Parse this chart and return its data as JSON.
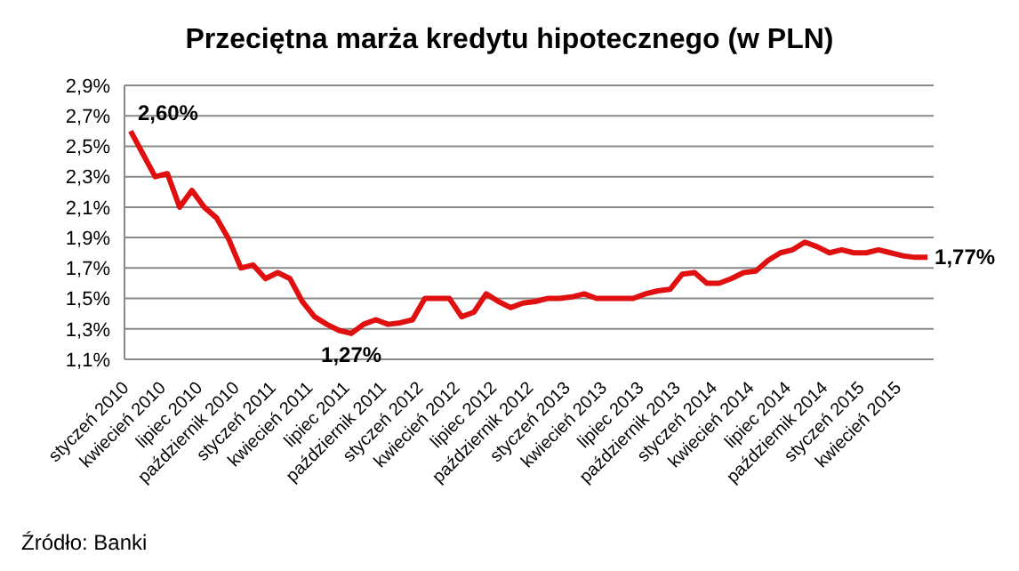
{
  "chart_data": {
    "type": "line",
    "title": "Przeciętna marża kredytu hipotecznego (w PLN)",
    "categories": [
      "styczeń 2010",
      null,
      null,
      "kwiecień 2010",
      null,
      null,
      "lipiec 2010",
      null,
      null,
      "październik 2010",
      null,
      null,
      "styczeń 2011",
      null,
      null,
      "kwiecień 2011",
      null,
      null,
      "lipiec 2011",
      null,
      null,
      "październik 2011",
      null,
      null,
      "styczeń 2012",
      null,
      null,
      "kwiecień 2012",
      null,
      null,
      "lipiec 2012",
      null,
      null,
      "październik 2012",
      null,
      null,
      "styczeń 2013",
      null,
      null,
      "kwiecień 2013",
      null,
      null,
      "lipiec 2013",
      null,
      null,
      "październik 2013",
      null,
      null,
      "styczeń 2014",
      null,
      null,
      "kwiecień 2014",
      null,
      null,
      "lipiec 2014",
      null,
      null,
      "październik 2014",
      null,
      null,
      "styczeń 2015",
      null,
      null,
      "kwiecień 2015",
      null,
      null
    ],
    "series": [
      {
        "color": "#e01010",
        "values": [
          2.6,
          2.45,
          2.3,
          2.32,
          2.1,
          2.21,
          2.1,
          2.03,
          1.89,
          1.7,
          1.72,
          1.63,
          1.67,
          1.63,
          1.48,
          1.38,
          1.33,
          1.29,
          1.27,
          1.33,
          1.36,
          1.33,
          1.34,
          1.36,
          1.5,
          1.5,
          1.5,
          1.38,
          1.41,
          1.53,
          1.48,
          1.44,
          1.47,
          1.48,
          1.5,
          1.5,
          1.51,
          1.53,
          1.5,
          1.5,
          1.5,
          1.5,
          1.53,
          1.55,
          1.56,
          1.66,
          1.67,
          1.6,
          1.6,
          1.63,
          1.67,
          1.68,
          1.75,
          1.8,
          1.82,
          1.87,
          1.84,
          1.8,
          1.82,
          1.8,
          1.8,
          1.82,
          1.8,
          1.78,
          1.77,
          1.77
        ],
        "value_labels": [
          "2,60%",
          null,
          null,
          null,
          null,
          null,
          null,
          null,
          null,
          null,
          null,
          null,
          null,
          null,
          null,
          null,
          null,
          null,
          "1,27%",
          null,
          null,
          null,
          null,
          null,
          null,
          null,
          null,
          null,
          null,
          null,
          null,
          null,
          null,
          null,
          null,
          null,
          null,
          null,
          null,
          null,
          null,
          null,
          null,
          null,
          null,
          null,
          null,
          null,
          null,
          null,
          null,
          null,
          null,
          null,
          null,
          null,
          null,
          null,
          null,
          null,
          null,
          null,
          null,
          null,
          null,
          "1,77%"
        ]
      }
    ],
    "ylim": [
      1.1,
      2.9
    ],
    "yticks": [
      {
        "value": 1.1,
        "label": "1,1%"
      },
      {
        "value": 1.3,
        "label": "1,3%"
      },
      {
        "value": 1.5,
        "label": "1,5%"
      },
      {
        "value": 1.7,
        "label": "1,7%"
      },
      {
        "value": 1.9,
        "label": "1,9%"
      },
      {
        "value": 2.1,
        "label": "2,1%"
      },
      {
        "value": 2.3,
        "label": "2,3%"
      },
      {
        "value": 2.5,
        "label": "2,5%"
      },
      {
        "value": 2.7,
        "label": "2,7%"
      },
      {
        "value": 2.9,
        "label": "2,9%"
      }
    ],
    "grid": "y",
    "legend": false,
    "marker": "none",
    "line_style": "solid",
    "annotations": [
      "Źródło: Banki"
    ]
  }
}
